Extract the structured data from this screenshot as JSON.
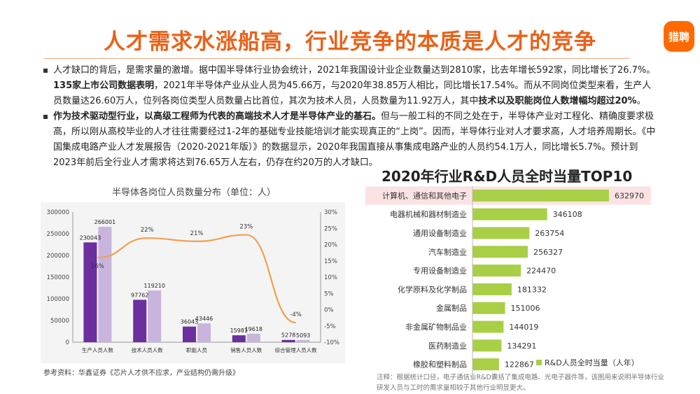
{
  "header": {
    "title": "人才需求水涨船高，行业竞争的本质是人才的竞争",
    "logo_text": "猎聘"
  },
  "body": {
    "p1_a": "人才缺口的背后，是需求量的激增。据中国半导体行业协会统计，2021年我国设计业企业数量达到2810家，比去年增长592家，同比增长了26.7%。",
    "p1_b": "135家上市公司数据表明",
    "p1_c": "，2021年半导体产业从业人员为45.66万，与2020年38.85万人相比，同比增长17.54%。而从不同岗位类型来看，生产人员数量达26.60万人，位列各岗位类型人员数量占比首位，其次为技术人员，人员数量为11.92万人，其中",
    "p1_d": "技术以及职能岗位人数增幅均超过20%",
    "p1_e": "。",
    "p2_a": "作为技术驱动型行业，以高级工程师为代表的高端技术人才是半导体产业的基石。",
    "p2_b": "但与一般工科的不同之处在于，半导体产业对工程化、精确度要求极高，所以刚从高校毕业的人才往往需要经过1-2年的基础专业技能培训才能实现真正的“上岗”。因而，半导体行业对人才要求高，人才培养周期长。《中国集成电路产业人才发展报告（2020-2021年版）》的数据显示，2020年我国直接从事集成电路产业的人员约54.1万人，同比增长5.7%。预计到2023年前后全行业人才需求将达到76.65万人左右，仍存在约20万的人才缺口。"
  },
  "left": {
    "source": "参考资料：华鑫证券《芯片人才供不应求，产业结构仍需升级》"
  },
  "right": {
    "note": "注释：根据统计口径，电子通信业R&D囊括了集成电路、光电子器件等，该图用来说明半导体行业研发人员与工时的需求量相较于其他行业明显更大。"
  },
  "chart_data": [
    {
      "type": "bar",
      "title": "半导体各岗位人员数量分布（单位：人）",
      "categories": [
        "生产人员人数",
        "技术人员人数",
        "职能人员",
        "销售人员人数",
        "综合管理人员人数"
      ],
      "series": [
        {
          "values": [
            230043,
            97762,
            36043,
            15981,
            5278
          ],
          "color": "#6b2fa0"
        },
        {
          "values": [
            266001,
            119210,
            43446,
            19618,
            5093
          ],
          "color": "#c8b4dc"
        },
        {
          "values": [
            16,
            22,
            21,
            23,
            -4
          ],
          "unit": "%",
          "axis": "right",
          "color": "#f0a050",
          "type": "line"
        }
      ],
      "point_labels": [
        "16%",
        "22%",
        "21%",
        "23%",
        "-4%"
      ],
      "ylim": [
        0,
        300000
      ],
      "yticks": [
        "0",
        "50000",
        "100000",
        "150000",
        "200000",
        "250000",
        "300000"
      ],
      "y2lim": [
        -10,
        30
      ],
      "y2ticks": [
        "-10%",
        "-5%",
        "0%",
        "5%",
        "10%",
        "15%",
        "20%",
        "25%",
        "30%"
      ]
    },
    {
      "type": "bar",
      "orientation": "horizontal",
      "title": "2020年行业R&D人员全时当量TOP10",
      "categories": [
        "计算机、通信和其他电子",
        "电器机械和器材制造业",
        "通用设备制造业",
        "汽车制造业",
        "专用设备制造业",
        "化学原料及化学制品",
        "金属制品",
        "非金属矿物制品业",
        "医药制造业",
        "橡胶和塑料制品"
      ],
      "series": [
        {
          "name": "R&D人员全时当量（人年）",
          "values": [
            632970,
            346108,
            263754,
            256327,
            224470,
            181332,
            151006,
            144019,
            134291,
            122867
          ],
          "color": "#a8cf45"
        }
      ],
      "highlight_index": 0,
      "highlight_color": "#fbe3e3"
    }
  ]
}
